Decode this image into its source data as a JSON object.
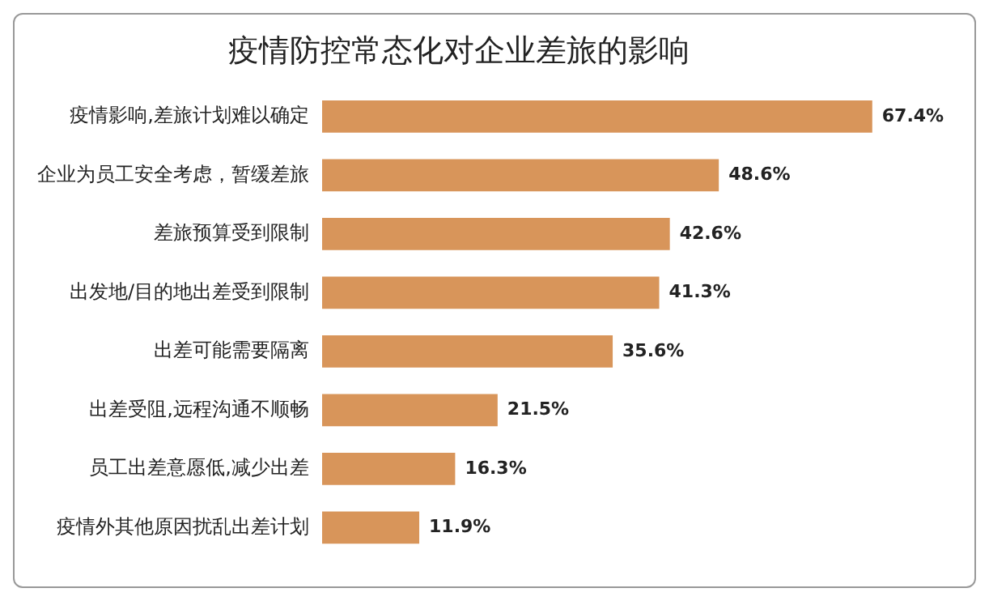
{
  "chart_data": {
    "type": "bar",
    "orientation": "horizontal",
    "title": "疫情防控常态化对企业差旅的影响",
    "categories": [
      "疫情影响,差旅计划难以确定",
      "企业为员工安全考虑，暂缓差旅",
      "差旅预算受到限制",
      "出发地/目的地出差受到限制",
      "出差可能需要隔离",
      "出差受阻,远程沟通不顺畅",
      "员工出差意愿低,减少出差",
      "疫情外其他原因扰乱出差计划"
    ],
    "values": [
      67.4,
      48.6,
      42.6,
      41.3,
      35.6,
      21.5,
      16.3,
      11.9
    ],
    "value_labels": [
      "67.4%",
      "48.6%",
      "42.6%",
      "41.3%",
      "35.6%",
      "21.5%",
      "16.3%",
      "11.9%"
    ],
    "color": "#d8955a",
    "tick_labels": "y",
    "grid": false
  }
}
